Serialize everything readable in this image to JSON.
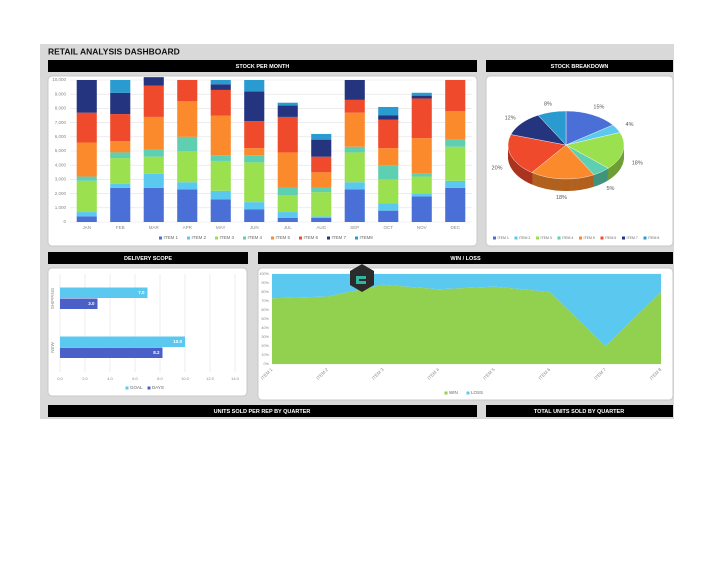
{
  "title": "RETAIL ANALYSIS DASHBOARD",
  "panels": [
    "UNITS SOLD PER REP BY QUARTER",
    "TOTAL UNITS SOLD BY QUARTER"
  ],
  "chart_data": [
    {
      "type": "bar",
      "stacked": true,
      "title": "STOCK PER MONTH",
      "categories": [
        "JAN",
        "FEB",
        "MAR",
        "APR",
        "MAY",
        "JUN",
        "JUL",
        "AUG",
        "SEP",
        "OCT",
        "NOV",
        "DEC"
      ],
      "series": [
        {
          "name": "ITEM 1",
          "color": "#4a6fd6",
          "values": [
            400,
            2400,
            2400,
            2300,
            1600,
            900,
            300,
            300,
            2300,
            800,
            1800,
            2400
          ]
        },
        {
          "name": "ITEM 2",
          "color": "#5bc8f0",
          "values": [
            300,
            300,
            1000,
            500,
            600,
            500,
            400,
            100,
            500,
            500,
            200,
            500
          ]
        },
        {
          "name": "ITEM 3",
          "color": "#9be04e",
          "values": [
            2200,
            1800,
            1200,
            2200,
            2100,
            2800,
            1200,
            1700,
            2100,
            1700,
            1200,
            2400
          ]
        },
        {
          "name": "ITEM 4",
          "color": "#5ecfb0",
          "values": [
            300,
            400,
            500,
            1000,
            400,
            500,
            500,
            300,
            400,
            1000,
            200,
            500
          ]
        },
        {
          "name": "ITEM 5",
          "color": "#fb8a2c",
          "values": [
            2400,
            800,
            2300,
            2500,
            2800,
            500,
            2500,
            1100,
            2400,
            1200,
            2500,
            2000
          ]
        },
        {
          "name": "ITEM 6",
          "color": "#f04a2c",
          "values": [
            2100,
            1900,
            2200,
            1500,
            1800,
            1900,
            2500,
            1100,
            900,
            2000,
            2800,
            2200
          ]
        },
        {
          "name": "ITEM 7",
          "color": "#24347f",
          "values": [
            2300,
            1500,
            600,
            0,
            400,
            2100,
            800,
            1200,
            1400,
            300,
            200,
            0
          ]
        },
        {
          "name": "ITEM8",
          "color": "#2a9bd0",
          "values": [
            0,
            900,
            0,
            0,
            300,
            800,
            200,
            400,
            0,
            600,
            200,
            0
          ]
        }
      ],
      "ylim": [
        0,
        10000
      ],
      "yticks": [
        0,
        {
          "value": 1000,
          "label": "1,000"
        },
        {
          "value": 2000,
          "label": "2,000"
        },
        {
          "value": 3000,
          "label": "3,000"
        },
        {
          "value": 4000,
          "label": "4,000"
        },
        {
          "value": 5000,
          "label": "5,000"
        },
        {
          "value": 6000,
          "label": "6,000"
        },
        {
          "value": 7000,
          "label": "7,000"
        },
        {
          "value": 8000,
          "label": "8,000"
        },
        {
          "value": 9000,
          "label": "9,000"
        },
        {
          "value": 10000,
          "label": "10,000"
        }
      ],
      "grid": true,
      "legend": "bottom"
    },
    {
      "type": "pie",
      "title": "STOCK BREAKDOWN",
      "categories": [
        "ITEM 1",
        "ITEM 2",
        "ITEM 3",
        "ITEM 4",
        "ITEM 5",
        "ITEM 6",
        "ITEM 7",
        "ITEM 8"
      ],
      "values": [
        15,
        4,
        18,
        5,
        18,
        20,
        12,
        8
      ],
      "value_labels": [
        "15%",
        "4%",
        "18%",
        "5%",
        "18%",
        "20%",
        "12%",
        "8%"
      ],
      "colors": [
        "#4a6fd6",
        "#5bc8f0",
        "#9be04e",
        "#5ecfb0",
        "#fb8a2c",
        "#f04a2c",
        "#24347f",
        "#2a9bd0"
      ],
      "legend": "bottom"
    },
    {
      "type": "bar",
      "orientation": "horizontal",
      "title": "DELIVERY SCOPE",
      "categories": [
        "SHIPPING",
        "NEW"
      ],
      "series": [
        {
          "name": "GOAL",
          "color": "#5bc8f0",
          "values": [
            7.0,
            10.0
          ],
          "value_labels": [
            "7.0",
            "10.0"
          ]
        },
        {
          "name": "DAYS",
          "color": "#4a5fc8",
          "values": [
            3.0,
            8.2
          ],
          "value_labels": [
            "3.0",
            "8.2"
          ]
        }
      ],
      "xlim": [
        0,
        14
      ],
      "xticks": [
        {
          "value": 0,
          "label": "0.0"
        },
        {
          "value": 2,
          "label": "2.0"
        },
        {
          "value": 4,
          "label": "4.0"
        },
        {
          "value": 6,
          "label": "6.0"
        },
        {
          "value": 8,
          "label": "8.0"
        },
        {
          "value": 10,
          "label": "10.0"
        },
        {
          "value": 12,
          "label": "12.0"
        },
        {
          "value": 14,
          "label": "14.0"
        }
      ],
      "grid": true,
      "legend": "bottom"
    },
    {
      "type": "area",
      "stacked": true,
      "title": "WIN / LOSS",
      "categories": [
        "ITEM 1",
        "ITEM 2",
        "ITEM 3",
        "ITEM 4",
        "ITEM 5",
        "ITEM 6",
        "ITEM 7",
        "ITEM 8"
      ],
      "series": [
        {
          "name": "WIN",
          "color": "#92d050",
          "values": [
            73,
            75,
            88,
            83,
            86,
            80,
            20,
            80
          ]
        },
        {
          "name": "LOSS",
          "color": "#5bc8f0",
          "values": [
            27,
            25,
            12,
            17,
            14,
            20,
            80,
            20
          ]
        }
      ],
      "ylim": [
        0,
        100
      ],
      "yticks": [
        {
          "value": 0,
          "label": "0%"
        },
        {
          "value": 10,
          "label": "10%"
        },
        {
          "value": 20,
          "label": "20%"
        },
        {
          "value": 30,
          "label": "30%"
        },
        {
          "value": 40,
          "label": "40%"
        },
        {
          "value": 50,
          "label": "50%"
        },
        {
          "value": 60,
          "label": "60%"
        },
        {
          "value": 70,
          "label": "70%"
        },
        {
          "value": 80,
          "label": "80%"
        },
        {
          "value": 90,
          "label": "90%"
        },
        {
          "value": 100,
          "label": "100%"
        }
      ],
      "grid": true,
      "legend": "bottom"
    }
  ]
}
